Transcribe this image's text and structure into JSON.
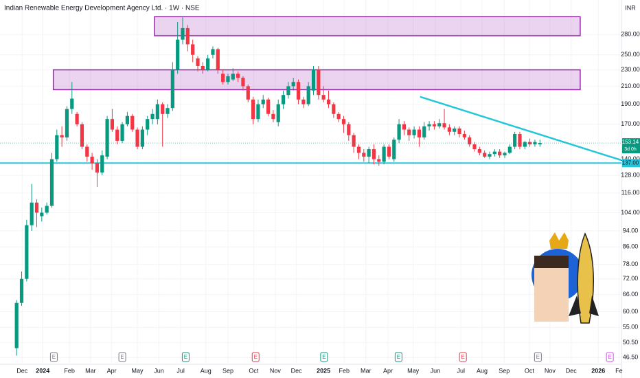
{
  "chart_data": {
    "type": "candlestick",
    "title": "Indian Renewable Energy Development Agency Ltd. · 1W · NSE",
    "currency": "INR",
    "log_scale": true,
    "up_color": "#089981",
    "down_color": "#f23645",
    "ylim": [
      44.8,
      339
    ],
    "yticks": [
      {
        "value": 280,
        "label": "280.00"
      },
      {
        "value": 250,
        "label": "250.00"
      },
      {
        "value": 230,
        "label": "230.00"
      },
      {
        "value": 210,
        "label": "210.00"
      },
      {
        "value": 190,
        "label": "190.00"
      },
      {
        "value": 170,
        "label": "170.00"
      },
      {
        "value": 140,
        "label": "140.00"
      },
      {
        "value": 128,
        "label": "128.00"
      },
      {
        "value": 116,
        "label": "116.00"
      },
      {
        "value": 104,
        "label": "104.00"
      },
      {
        "value": 94,
        "label": "94.00"
      },
      {
        "value": 86,
        "label": "86.00"
      },
      {
        "value": 78,
        "label": "78.00"
      },
      {
        "value": 72,
        "label": "72.00"
      },
      {
        "value": 66,
        "label": "66.00"
      },
      {
        "value": 60,
        "label": "60.00"
      },
      {
        "value": 55,
        "label": "55.00"
      },
      {
        "value": 50.5,
        "label": "50.50"
      },
      {
        "value": 46.5,
        "label": "46.50"
      }
    ],
    "xlim": [
      -3.3,
      120.2
    ],
    "xticks": [
      {
        "value": 1.1,
        "label": "Dec"
      },
      {
        "value": 5.2,
        "label": "2024"
      },
      {
        "value": 10.5,
        "label": "Feb"
      },
      {
        "value": 14.7,
        "label": "Mar"
      },
      {
        "value": 18.9,
        "label": "Apr"
      },
      {
        "value": 24,
        "label": "May"
      },
      {
        "value": 28.3,
        "label": "Jun"
      },
      {
        "value": 32.6,
        "label": "Jul"
      },
      {
        "value": 37.6,
        "label": "Aug"
      },
      {
        "value": 42,
        "label": "Sep"
      },
      {
        "value": 47.1,
        "label": "Oct"
      },
      {
        "value": 51.4,
        "label": "Nov"
      },
      {
        "value": 55.6,
        "label": "Dec"
      },
      {
        "value": 61,
        "label": "2025"
      },
      {
        "value": 65.1,
        "label": "Feb"
      },
      {
        "value": 69.4,
        "label": "Mar"
      },
      {
        "value": 73.8,
        "label": "Apr"
      },
      {
        "value": 78.8,
        "label": "May"
      },
      {
        "value": 83.2,
        "label": "Jun"
      },
      {
        "value": 88.3,
        "label": "Jul"
      },
      {
        "value": 92.5,
        "label": "Aug"
      },
      {
        "value": 96.9,
        "label": "Sep"
      },
      {
        "value": 101.9,
        "label": "Oct"
      },
      {
        "value": 106,
        "label": "Nov"
      },
      {
        "value": 110.2,
        "label": "Dec"
      },
      {
        "value": 115.6,
        "label": "2026"
      },
      {
        "value": 119.7,
        "label": "Fe"
      }
    ],
    "ohlc": [
      [
        49,
        64,
        47,
        63
      ],
      [
        63,
        75,
        62,
        72
      ],
      [
        72,
        100,
        71,
        97
      ],
      [
        97,
        122,
        94,
        110
      ],
      [
        110,
        112,
        96,
        104
      ],
      [
        102,
        107,
        99,
        104
      ],
      [
        104,
        110,
        103,
        108
      ],
      [
        108,
        145,
        107,
        140
      ],
      [
        140,
        165,
        138,
        160
      ],
      [
        160,
        168,
        150,
        158
      ],
      [
        158,
        188,
        155,
        185
      ],
      [
        185,
        215,
        180,
        196
      ],
      [
        180,
        182,
        168,
        170
      ],
      [
        170,
        172,
        148,
        150
      ],
      [
        150,
        152,
        138,
        142
      ],
      [
        142,
        145,
        132,
        137
      ],
      [
        137,
        140,
        120,
        130
      ],
      [
        130,
        147,
        128,
        143
      ],
      [
        142,
        178,
        140,
        175
      ],
      [
        175,
        185,
        163,
        165
      ],
      [
        165,
        168,
        152,
        155
      ],
      [
        155,
        172,
        153,
        170
      ],
      [
        170,
        182,
        168,
        178
      ],
      [
        178,
        180,
        163,
        165
      ],
      [
        165,
        167,
        148,
        150
      ],
      [
        150,
        168,
        148,
        165
      ],
      [
        165,
        178,
        160,
        175
      ],
      [
        175,
        185,
        170,
        180
      ],
      [
        175,
        195,
        170,
        190
      ],
      [
        190,
        192,
        150,
        180
      ],
      [
        180,
        190,
        176,
        186
      ],
      [
        186,
        240,
        183,
        230
      ],
      [
        230,
        300,
        225,
        272
      ],
      [
        272,
        310,
        265,
        290
      ],
      [
        290,
        295,
        255,
        265
      ],
      [
        265,
        272,
        240,
        250
      ],
      [
        245,
        248,
        228,
        235
      ],
      [
        235,
        240,
        225,
        230
      ],
      [
        230,
        250,
        228,
        245
      ],
      [
        250,
        262,
        245,
        258
      ],
      [
        258,
        260,
        225,
        230
      ],
      [
        225,
        230,
        212,
        215
      ],
      [
        215,
        225,
        212,
        222
      ],
      [
        218,
        232,
        216,
        225
      ],
      [
        225,
        228,
        215,
        220
      ],
      [
        220,
        222,
        205,
        210
      ],
      [
        210,
        212,
        192,
        195
      ],
      [
        195,
        198,
        170,
        175
      ],
      [
        175,
        195,
        172,
        190
      ],
      [
        190,
        200,
        186,
        195
      ],
      [
        195,
        197,
        178,
        180
      ],
      [
        180,
        184,
        172,
        175
      ],
      [
        172,
        195,
        168,
        190
      ],
      [
        190,
        205,
        185,
        200
      ],
      [
        200,
        215,
        196,
        210
      ],
      [
        210,
        220,
        205,
        215
      ],
      [
        215,
        218,
        190,
        195
      ],
      [
        195,
        198,
        186,
        190
      ],
      [
        190,
        215,
        188,
        210
      ],
      [
        205,
        235,
        200,
        230
      ],
      [
        230,
        235,
        195,
        200
      ],
      [
        200,
        210,
        192,
        195
      ],
      [
        195,
        205,
        186,
        190
      ],
      [
        190,
        192,
        176,
        180
      ],
      [
        180,
        182,
        172,
        175
      ],
      [
        175,
        178,
        162,
        170
      ],
      [
        170,
        172,
        155,
        160
      ],
      [
        160,
        162,
        145,
        150
      ],
      [
        150,
        152,
        140,
        145
      ],
      [
        145,
        148,
        138,
        142
      ],
      [
        142,
        150,
        137,
        148
      ],
      [
        148,
        152,
        136,
        140
      ],
      [
        140,
        143,
        135,
        138
      ],
      [
        138,
        152,
        136,
        150
      ],
      [
        150,
        152,
        140,
        142
      ],
      [
        140,
        158,
        138,
        156
      ],
      [
        156,
        175,
        153,
        170
      ],
      [
        170,
        173,
        160,
        165
      ],
      [
        165,
        167,
        155,
        160
      ],
      [
        160,
        168,
        157,
        165
      ],
      [
        165,
        168,
        150,
        158
      ],
      [
        158,
        172,
        156,
        168
      ],
      [
        168,
        173,
        164,
        170
      ],
      [
        170,
        173,
        165,
        168
      ],
      [
        168,
        175,
        166,
        171
      ],
      [
        171,
        185,
        165,
        167
      ],
      [
        167,
        170,
        160,
        163
      ],
      [
        163,
        168,
        160,
        166
      ],
      [
        166,
        168,
        158,
        161
      ],
      [
        161,
        164,
        156,
        158
      ],
      [
        158,
        160,
        150,
        152
      ],
      [
        152,
        154,
        146,
        148
      ],
      [
        148,
        150,
        143,
        145
      ],
      [
        145,
        147,
        141,
        142
      ],
      [
        142,
        146,
        140,
        144
      ],
      [
        144,
        148,
        142,
        146
      ],
      [
        146,
        148,
        141,
        143
      ],
      [
        143,
        146,
        141,
        145
      ],
      [
        145,
        152,
        144,
        150
      ],
      [
        150,
        163,
        148,
        161
      ],
      [
        161,
        163,
        148,
        150
      ],
      [
        150,
        155,
        148,
        154
      ],
      [
        154,
        157,
        150,
        152
      ],
      [
        152,
        156,
        150,
        154
      ],
      [
        152,
        156,
        150,
        153.14
      ]
    ],
    "countdown": "3d 0h",
    "zones": [
      {
        "start": 27.4,
        "end": 112,
        "top": 309,
        "bottom": 278,
        "color": "#9c27b0"
      },
      {
        "start": 7.3,
        "end": 112,
        "top": 230,
        "bottom": 206,
        "color": "#9c27b0"
      }
    ],
    "trendline": [
      {
        "x": 80.2,
        "price": 198
      },
      {
        "x": 122,
        "price": 137
      }
    ],
    "support": {
      "value": 137,
      "label": "137.00",
      "color": "#26c6da"
    },
    "events": [
      {
        "x": 7.4,
        "label": "E",
        "color": "#787b86"
      },
      {
        "x": 21,
        "label": "E",
        "color": "#787b86"
      },
      {
        "x": 33.6,
        "label": "E",
        "color": "#089981"
      },
      {
        "x": 47.5,
        "label": "E",
        "color": "#f23645"
      },
      {
        "x": 61.1,
        "label": "E",
        "color": "#089981"
      },
      {
        "x": 75.9,
        "label": "E",
        "color": "#089981"
      },
      {
        "x": 88.7,
        "label": "E",
        "color": "#f23645"
      },
      {
        "x": 103.6,
        "label": "E",
        "color": "#787b86"
      },
      {
        "x": 117.9,
        "label": "E",
        "color": "#e040fb"
      }
    ]
  }
}
